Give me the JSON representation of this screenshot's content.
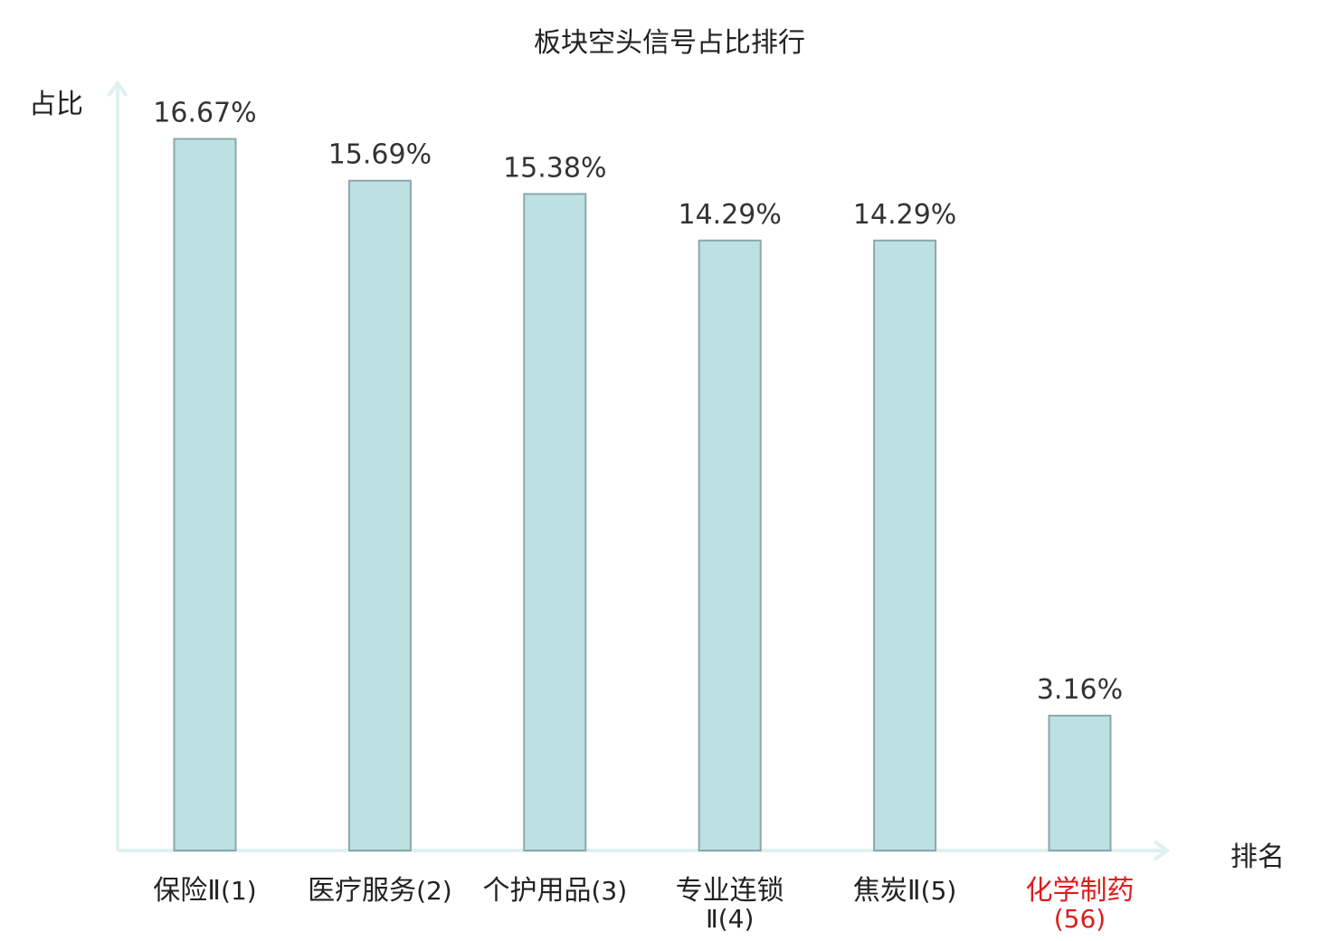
{
  "chart_data": {
    "type": "bar",
    "title": "板块空头信号占比排行",
    "ylabel": "占比",
    "xlabel": "排名",
    "categories": [
      {
        "name": "保险Ⅱ",
        "rank": "(1)"
      },
      {
        "name": "医疗服务",
        "rank": "(2)"
      },
      {
        "name": "个护用品",
        "rank": "(3)"
      },
      {
        "name": "专业连锁Ⅱ",
        "rank": "(4)"
      },
      {
        "name": "焦炭Ⅱ",
        "rank": "(5)"
      },
      {
        "name": "化学制药",
        "rank": "(56)"
      }
    ],
    "values": [
      16.67,
      15.69,
      15.38,
      14.29,
      14.29,
      3.16
    ],
    "value_labels": [
      "16.67%",
      "15.69%",
      "15.38%",
      "14.29%",
      "14.29%",
      "3.16%"
    ],
    "highlight_index": 5,
    "ylim": [
      0,
      18
    ],
    "grid": false,
    "colors": {
      "bar_fill": "#bde0e2",
      "bar_stroke": "#8aa8aa",
      "axis": "#dff1ee",
      "label_text": "#222222",
      "value_text": "#333333",
      "highlight_text": "#e01b1b"
    }
  }
}
